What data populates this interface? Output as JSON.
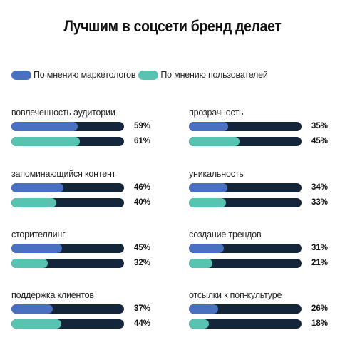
{
  "title": "Лучшим в соцсети бренд делает",
  "colors": {
    "marketers": "#4a70c2",
    "users": "#57c3b0",
    "track": "#13263a"
  },
  "legend": [
    {
      "label": "По мнению маркетологов",
      "color": "#4a70c2"
    },
    {
      "label": "По мнению пользователей",
      "color": "#57c3b0"
    }
  ],
  "chart_data": {
    "type": "bar",
    "title": "Лучшим в соцсети бренд делает",
    "unit": "%",
    "ylim": [
      0,
      100
    ],
    "categories": [
      "вовлеченность аудитории",
      "запоминающийся контент",
      "сторителлинг",
      "поддержка клиентов",
      "прозрачность",
      "уникальность",
      "создание трендов",
      "отсылки к поп-культуре"
    ],
    "series": [
      {
        "name": "По мнению маркетологов",
        "values": [
          59,
          46,
          45,
          37,
          35,
          34,
          31,
          26
        ]
      },
      {
        "name": "По мнению пользователей",
        "values": [
          61,
          40,
          32,
          44,
          45,
          33,
          21,
          18
        ]
      }
    ],
    "value_labels": {
      "marketers": [
        "59%",
        "46%",
        "45%",
        "37%",
        "35%",
        "34%",
        "31%",
        "26%"
      ],
      "users": [
        "61%",
        "40%",
        "32%",
        "44%",
        "45%",
        "33%",
        "21%",
        "18%"
      ]
    }
  }
}
